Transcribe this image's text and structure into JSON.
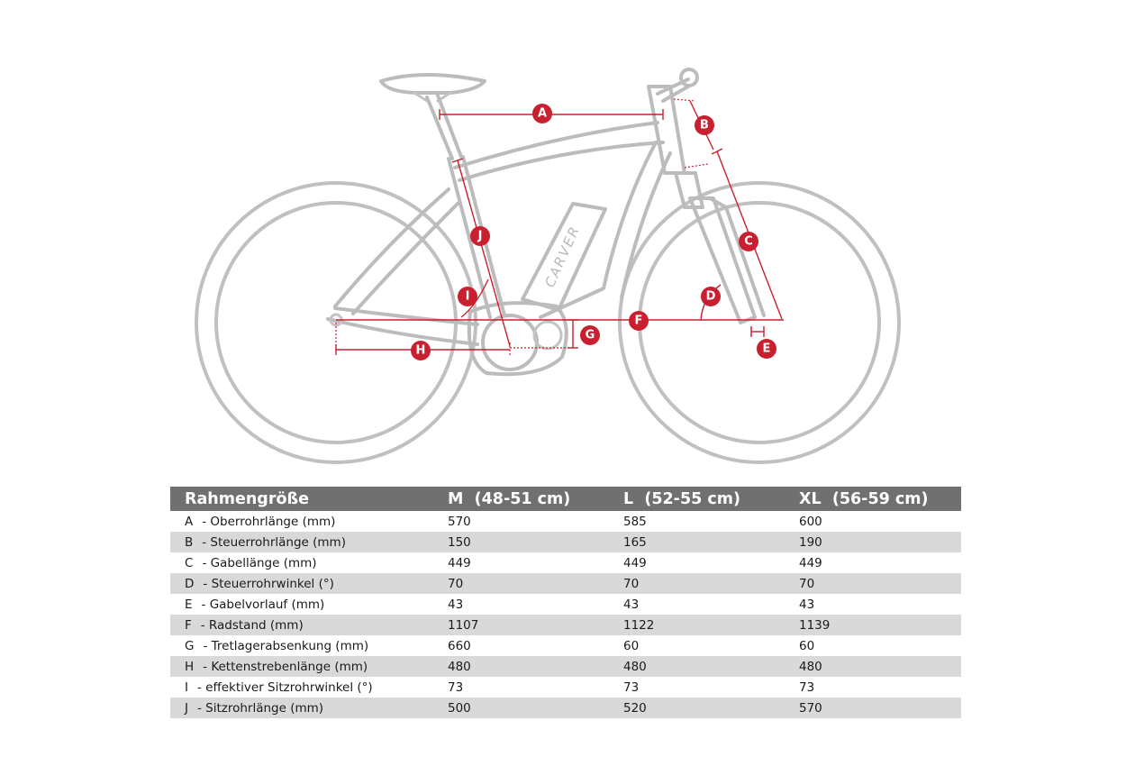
{
  "diagram": {
    "logo": "CARVER",
    "labels": [
      "A",
      "B",
      "C",
      "D",
      "E",
      "F",
      "G",
      "H",
      "I",
      "J"
    ]
  },
  "table": {
    "header": [
      "Rahmengröße",
      "M  (48-51 cm)",
      "L  (52-55 cm)",
      "XL  (56-59 cm)"
    ],
    "rows": [
      {
        "key": "A",
        "label": "- Oberrohrlänge (mm)",
        "values": [
          "570",
          "585",
          "600"
        ]
      },
      {
        "key": "B",
        "label": "- Steuerrohrlänge (mm)",
        "values": [
          "150",
          "165",
          "190"
        ]
      },
      {
        "key": "C",
        "label": "- Gabellänge (mm)",
        "values": [
          "449",
          "449",
          "449"
        ]
      },
      {
        "key": "D",
        "label": "- Steuerrohrwinkel (°)",
        "values": [
          "70",
          "70",
          "70"
        ]
      },
      {
        "key": "E",
        "label": "- Gabelvorlauf (mm)",
        "values": [
          "43",
          "43",
          "43"
        ]
      },
      {
        "key": "F",
        "label": "- Radstand (mm)",
        "values": [
          "1107",
          "1122",
          "1139"
        ]
      },
      {
        "key": "G",
        "label": "- Tretlagerabsenkung (mm)",
        "values": [
          "660",
          "60",
          "60"
        ]
      },
      {
        "key": "H",
        "label": "- Kettenstrebenlänge (mm)",
        "values": [
          "480",
          "480",
          "480"
        ]
      },
      {
        "key": "I",
        "label": "- effektiver Sitzrohrwinkel (°)",
        "values": [
          "73",
          "73",
          "73"
        ]
      },
      {
        "key": "J",
        "label": "- Sitzrohrlänge (mm)",
        "values": [
          "500",
          "520",
          "570"
        ]
      }
    ]
  }
}
